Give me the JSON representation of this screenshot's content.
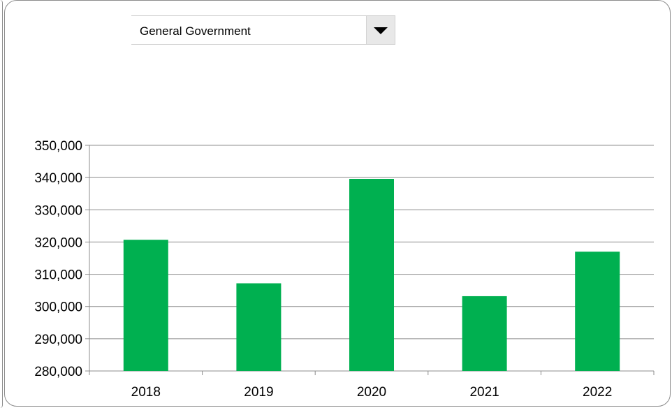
{
  "selector": {
    "value": "General Government",
    "button_icon": "triangle-down-icon"
  },
  "colors": {
    "bar": "#00b050",
    "grid": "#8c8c8c",
    "frame": "#8c8c8c"
  },
  "chart_data": {
    "type": "bar",
    "categories": [
      "2018",
      "2019",
      "2020",
      "2021",
      "2022"
    ],
    "values": [
      320700,
      307200,
      339600,
      303200,
      317000
    ],
    "ylim": [
      280000,
      350000
    ],
    "ytick_step": 10000,
    "ytick_labels": [
      "280,000",
      "290,000",
      "300,000",
      "310,000",
      "320,000",
      "330,000",
      "340,000",
      "350,000"
    ],
    "grid": true,
    "legend": false,
    "title": "",
    "xlabel": "",
    "ylabel": ""
  }
}
